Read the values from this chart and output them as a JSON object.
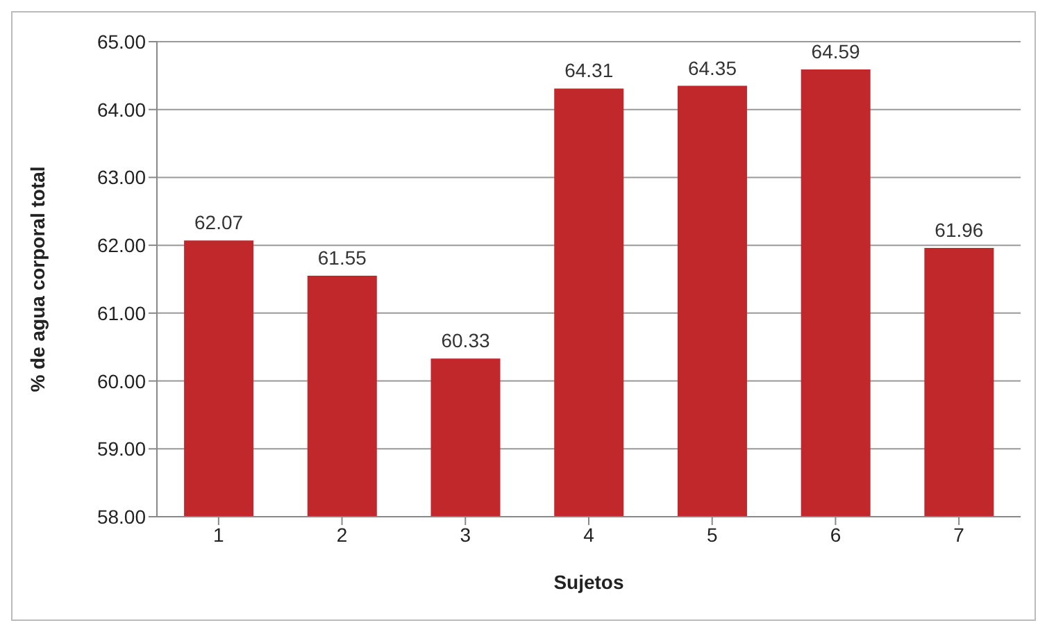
{
  "chart_data": {
    "type": "bar",
    "xlabel": "Sujetos",
    "ylabel": "% de agua corporal total",
    "categories": [
      "1",
      "2",
      "3",
      "4",
      "5",
      "6",
      "7"
    ],
    "values": [
      62.07,
      61.55,
      60.33,
      64.31,
      64.35,
      64.59,
      61.96
    ],
    "color": "#c0282c",
    "ylim": [
      58,
      65
    ],
    "yticks": [
      {
        "value": 58,
        "label": "58.00"
      },
      {
        "value": 59,
        "label": "59.00"
      },
      {
        "value": 60,
        "label": "60.00"
      },
      {
        "value": 61,
        "label": "61.00"
      },
      {
        "value": 62,
        "label": "62.00"
      },
      {
        "value": 63,
        "label": "63.00"
      },
      {
        "value": 64,
        "label": "64.00"
      },
      {
        "value": 65,
        "label": "65.00"
      }
    ],
    "grid": "y",
    "data_labels": true,
    "legend": false
  }
}
